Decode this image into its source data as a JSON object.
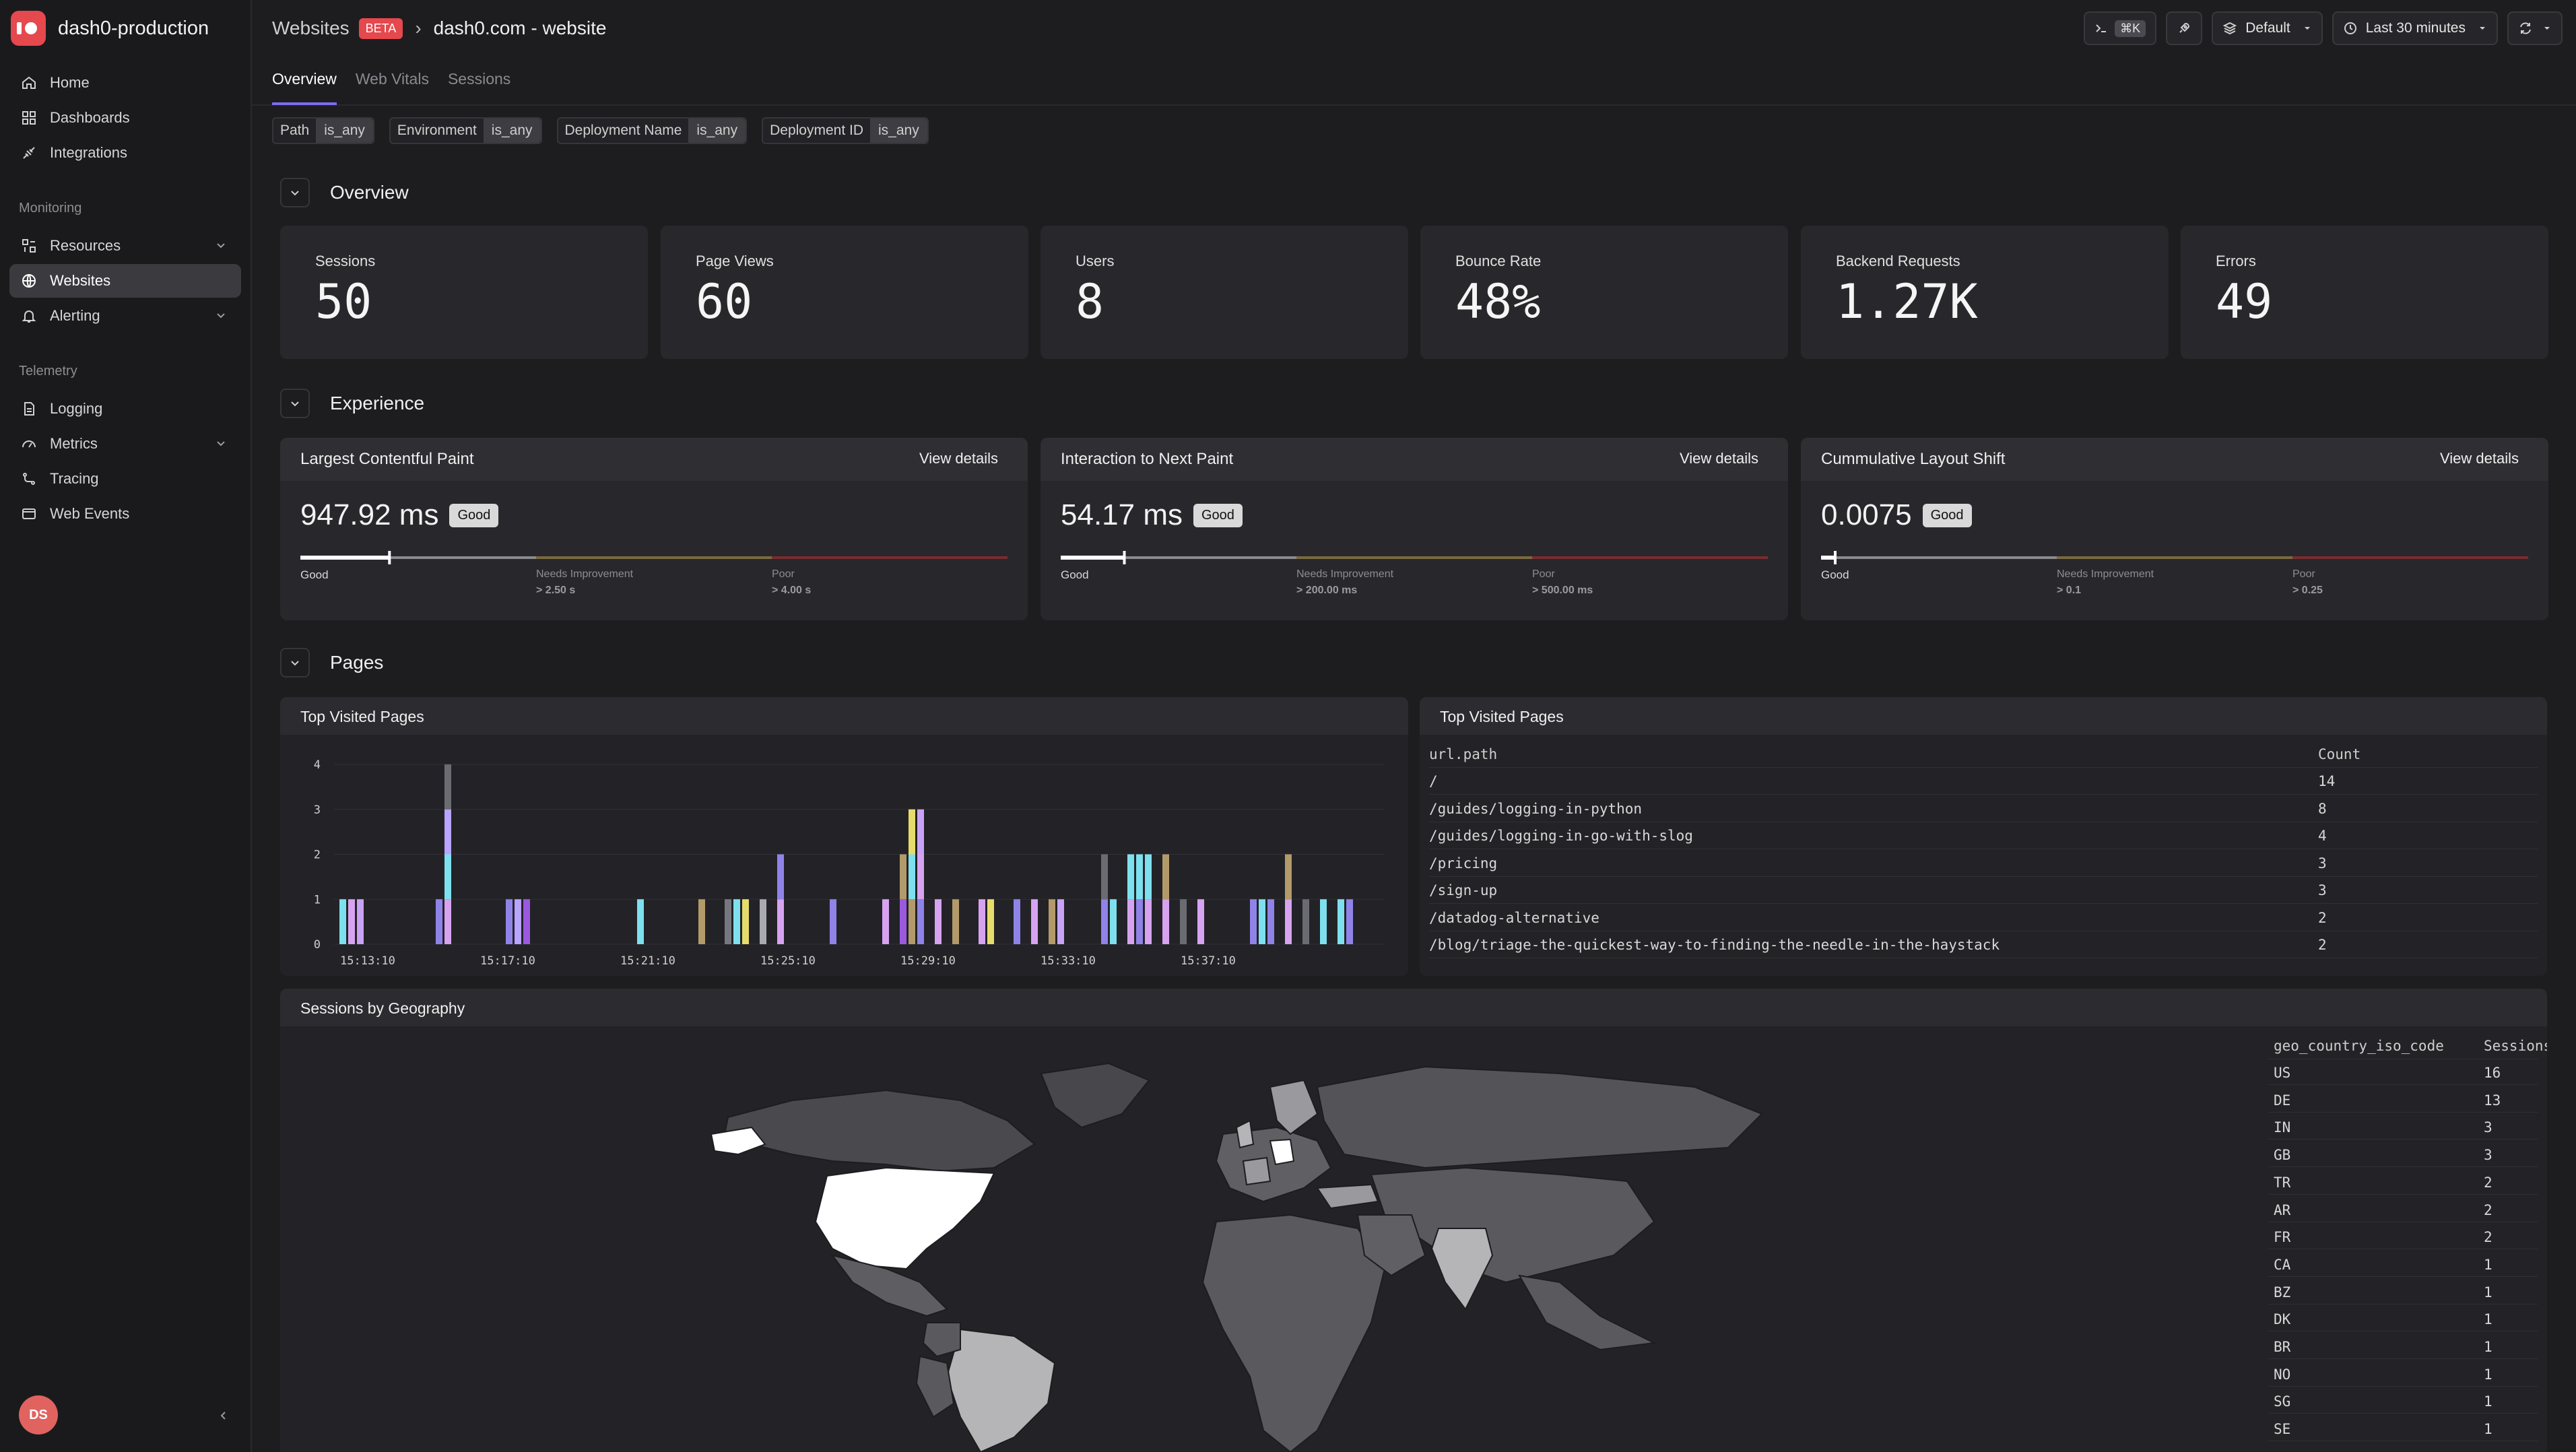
{
  "brand": {
    "name": "dash0-production"
  },
  "sidebar": {
    "items": [
      {
        "label": "Home",
        "icon": "home-icon"
      },
      {
        "label": "Dashboards",
        "icon": "dashboards-icon"
      },
      {
        "label": "Integrations",
        "icon": "integrations-icon"
      }
    ],
    "monitoring_label": "Monitoring",
    "monitoring": [
      {
        "label": "Resources",
        "icon": "resources-icon"
      },
      {
        "label": "Websites",
        "icon": "globe-icon"
      },
      {
        "label": "Alerting",
        "icon": "bell-icon"
      }
    ],
    "telemetry_label": "Telemetry",
    "telemetry": [
      {
        "label": "Logging",
        "icon": "logging-icon"
      },
      {
        "label": "Metrics",
        "icon": "metrics-icon"
      },
      {
        "label": "Tracing",
        "icon": "tracing-icon"
      },
      {
        "label": "Web Events",
        "icon": "web-events-icon"
      }
    ],
    "user_initials": "DS"
  },
  "header": {
    "breadcrumb_root": "Websites",
    "beta": "BETA",
    "separator": "›",
    "site": "dash0.com - website",
    "tabs": [
      "Overview",
      "Web Vitals",
      "Sessions"
    ],
    "cmd_shortcut": "⌘K",
    "dataset": "Default",
    "time_range": "Last 30 minutes"
  },
  "filters": [
    {
      "key": "Path",
      "op": "is_any"
    },
    {
      "key": "Environment",
      "op": "is_any"
    },
    {
      "key": "Deployment Name",
      "op": "is_any"
    },
    {
      "key": "Deployment ID",
      "op": "is_any"
    }
  ],
  "sections": {
    "overview": "Overview",
    "experience": "Experience",
    "pages": "Pages"
  },
  "stats": [
    {
      "label": "Sessions",
      "value": "50"
    },
    {
      "label": "Page Views",
      "value": "60"
    },
    {
      "label": "Users",
      "value": "8"
    },
    {
      "label": "Bounce Rate",
      "value": "48%"
    },
    {
      "label": "Backend Requests",
      "value": "1.27K"
    },
    {
      "label": "Errors",
      "value": "49"
    }
  ],
  "vitals": [
    {
      "title": "Largest Contentful Paint",
      "link": "View details",
      "value": "947.92 ms",
      "badge": "Good",
      "marker": 0.126,
      "good": "Good",
      "ni": "Needs Improvement",
      "ni_th": "> 2.50 s",
      "poor": "Poor",
      "poor_th": "> 4.00 s"
    },
    {
      "title": "Interaction to Next Paint",
      "link": "View details",
      "value": "54.17 ms",
      "badge": "Good",
      "marker": 0.09,
      "good": "Good",
      "ni": "Needs Improvement",
      "ni_th": "> 200.00 ms",
      "poor": "Poor",
      "poor_th": "> 500.00 ms"
    },
    {
      "title": "Cummulative Layout Shift",
      "link": "View details",
      "value": "0.0075",
      "badge": "Good",
      "marker": 0.02,
      "good": "Good",
      "ni": "Needs Improvement",
      "ni_th": "> 0.1",
      "poor": "Poor",
      "poor_th": "> 0.25"
    }
  ],
  "vital_colors": {
    "good": "#8a8a8f",
    "ni": "#7b6a3e",
    "poor": "#7a2c2e"
  },
  "chart_panel_title": "Top Visited Pages",
  "chart_data": {
    "type": "bar",
    "yticks": [
      0,
      1,
      2,
      3,
      4
    ],
    "ylim": [
      0,
      4
    ],
    "x_tick_labels": [
      "15:13:10",
      "15:17:10",
      "15:21:10",
      "15:25:10",
      "15:29:10",
      "15:33:10",
      "15:37:10"
    ],
    "xlim_minutes": [
      0,
      30
    ],
    "bars": [
      {
        "t": 0.25,
        "stack": [
          1
        ],
        "c": [
          "#7ee0ee"
        ]
      },
      {
        "t": 0.5,
        "stack": [
          1
        ],
        "c": [
          "#d7a3f0"
        ]
      },
      {
        "t": 0.75,
        "stack": [
          1
        ],
        "c": [
          "#c8a2f5"
        ]
      },
      {
        "t": 3.0,
        "stack": [
          1
        ],
        "c": [
          "#8f83e8"
        ]
      },
      {
        "t": 3.25,
        "stack": [
          1,
          1,
          1,
          1
        ],
        "c": [
          "#d7a3f0",
          "#7ee0ee",
          "#b9a4ff",
          "#6b6b72"
        ]
      },
      {
        "t": 5.0,
        "stack": [
          1
        ],
        "c": [
          "#8f83e8"
        ]
      },
      {
        "t": 5.25,
        "stack": [
          1
        ],
        "c": [
          "#b9a4ff"
        ]
      },
      {
        "t": 5.5,
        "stack": [
          1
        ],
        "c": [
          "#9b59e0"
        ]
      },
      {
        "t": 8.75,
        "stack": [
          1
        ],
        "c": [
          "#7ee0ee"
        ]
      },
      {
        "t": 10.5,
        "stack": [
          1
        ],
        "c": [
          "#b39a6a"
        ]
      },
      {
        "t": 11.25,
        "stack": [
          1
        ],
        "c": [
          "#777780"
        ]
      },
      {
        "t": 11.5,
        "stack": [
          1
        ],
        "c": [
          "#7ee0ee"
        ]
      },
      {
        "t": 11.75,
        "stack": [
          1
        ],
        "c": [
          "#e6dc6c"
        ]
      },
      {
        "t": 12.25,
        "stack": [
          1
        ],
        "c": [
          "#a9a9b0"
        ]
      },
      {
        "t": 12.75,
        "stack": [
          1,
          1
        ],
        "c": [
          "#d7a3f0",
          "#8f83e8"
        ]
      },
      {
        "t": 14.25,
        "stack": [
          1
        ],
        "c": [
          "#8f83e8"
        ]
      },
      {
        "t": 15.75,
        "stack": [
          1
        ],
        "c": [
          "#d7a3f0"
        ]
      },
      {
        "t": 16.25,
        "stack": [
          1,
          1
        ],
        "c": [
          "#9b59e0",
          "#b39a6a"
        ]
      },
      {
        "t": 16.5,
        "stack": [
          1,
          1,
          1
        ],
        "c": [
          "#b39a6a",
          "#7ee0ee",
          "#e6dc6c"
        ]
      },
      {
        "t": 16.75,
        "stack": [
          1,
          1,
          1
        ],
        "c": [
          "#8f83e8",
          "#d7a3f0",
          "#c8a2f5"
        ]
      },
      {
        "t": 17.25,
        "stack": [
          1
        ],
        "c": [
          "#d7a3f0"
        ]
      },
      {
        "t": 17.75,
        "stack": [
          1
        ],
        "c": [
          "#b39a6a"
        ]
      },
      {
        "t": 18.5,
        "stack": [
          1
        ],
        "c": [
          "#d7a3f0"
        ]
      },
      {
        "t": 18.75,
        "stack": [
          1
        ],
        "c": [
          "#e6dc6c"
        ]
      },
      {
        "t": 19.5,
        "stack": [
          1
        ],
        "c": [
          "#8f83e8"
        ]
      },
      {
        "t": 20.0,
        "stack": [
          1
        ],
        "c": [
          "#d7a3f0"
        ]
      },
      {
        "t": 20.5,
        "stack": [
          1
        ],
        "c": [
          "#b39a6a"
        ]
      },
      {
        "t": 20.75,
        "stack": [
          1
        ],
        "c": [
          "#c8a2f5"
        ]
      },
      {
        "t": 22.0,
        "stack": [
          1,
          1
        ],
        "c": [
          "#8f83e8",
          "#6b6b72"
        ]
      },
      {
        "t": 22.25,
        "stack": [
          1
        ],
        "c": [
          "#7ee0ee"
        ]
      },
      {
        "t": 22.75,
        "stack": [
          1,
          1
        ],
        "c": [
          "#d7a3f0",
          "#7ee0ee"
        ]
      },
      {
        "t": 23.0,
        "stack": [
          1,
          1
        ],
        "c": [
          "#8f83e8",
          "#7ee0ee"
        ]
      },
      {
        "t": 23.25,
        "stack": [
          1,
          1
        ],
        "c": [
          "#d7a3f0",
          "#7ee0ee"
        ]
      },
      {
        "t": 23.75,
        "stack": [
          1,
          1
        ],
        "c": [
          "#d7a3f0",
          "#b39a6a"
        ]
      },
      {
        "t": 24.25,
        "stack": [
          1
        ],
        "c": [
          "#6b6b72"
        ]
      },
      {
        "t": 24.75,
        "stack": [
          1
        ],
        "c": [
          "#d7a3f0"
        ]
      },
      {
        "t": 26.25,
        "stack": [
          1
        ],
        "c": [
          "#8f83e8"
        ]
      },
      {
        "t": 26.5,
        "stack": [
          1
        ],
        "c": [
          "#7ee0ee"
        ]
      },
      {
        "t": 26.75,
        "stack": [
          1
        ],
        "c": [
          "#8f83e8"
        ]
      },
      {
        "t": 27.25,
        "stack": [
          1,
          1
        ],
        "c": [
          "#d7a3f0",
          "#b39a6a"
        ]
      },
      {
        "t": 27.75,
        "stack": [
          1
        ],
        "c": [
          "#6b6b72"
        ]
      },
      {
        "t": 28.25,
        "stack": [
          1
        ],
        "c": [
          "#7ee0ee"
        ]
      },
      {
        "t": 28.75,
        "stack": [
          1
        ],
        "c": [
          "#7ee0ee"
        ]
      },
      {
        "t": 29.0,
        "stack": [
          1
        ],
        "c": [
          "#8f83e8"
        ]
      }
    ]
  },
  "pages_table": {
    "title": "Top Visited Pages",
    "columns": [
      "url.path",
      "Count"
    ],
    "rows": [
      [
        "/",
        "14"
      ],
      [
        "/guides/logging-in-python",
        "8"
      ],
      [
        "/guides/logging-in-go-with-slog",
        "4"
      ],
      [
        "/pricing",
        "3"
      ],
      [
        "/sign-up",
        "3"
      ],
      [
        "/datadog-alternative",
        "2"
      ],
      [
        "/blog/triage-the-quickest-way-to-finding-the-needle-in-the-haystack",
        "2"
      ]
    ]
  },
  "geo": {
    "title": "Sessions by Geography",
    "columns": [
      "geo_country_iso_code",
      "Sessions"
    ],
    "rows": [
      [
        "US",
        "16"
      ],
      [
        "DE",
        "13"
      ],
      [
        "IN",
        "3"
      ],
      [
        "GB",
        "3"
      ],
      [
        "TR",
        "2"
      ],
      [
        "AR",
        "2"
      ],
      [
        "FR",
        "2"
      ],
      [
        "CA",
        "1"
      ],
      [
        "BZ",
        "1"
      ],
      [
        "DK",
        "1"
      ],
      [
        "BR",
        "1"
      ],
      [
        "NO",
        "1"
      ],
      [
        "SG",
        "1"
      ],
      [
        "SE",
        "1"
      ]
    ]
  }
}
